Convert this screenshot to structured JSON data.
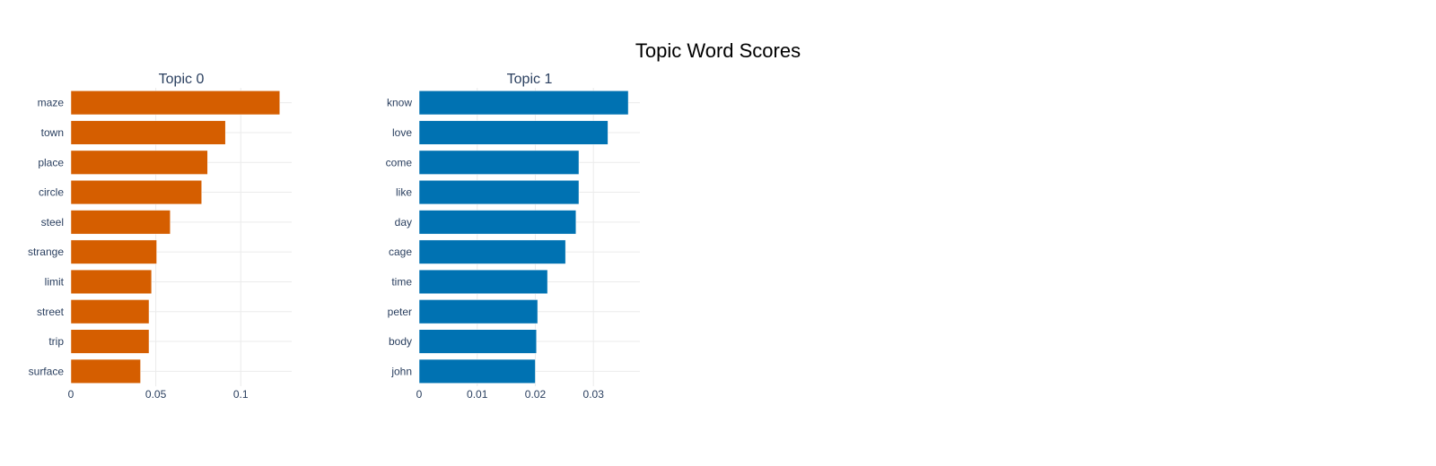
{
  "title": "Topic Word Scores",
  "chart_data": [
    {
      "type": "bar",
      "orientation": "horizontal",
      "title": "Topic 0",
      "color": "#d55e00",
      "categories": [
        "maze",
        "town",
        "place",
        "circle",
        "steel",
        "strange",
        "limit",
        "street",
        "trip",
        "surface"
      ],
      "values": [
        0.123,
        0.091,
        0.0805,
        0.077,
        0.0585,
        0.0505,
        0.0475,
        0.046,
        0.046,
        0.041
      ],
      "xlim": [
        0,
        0.13
      ],
      "xticks": [
        0,
        0.05,
        0.1
      ],
      "xtick_labels": [
        "0",
        "0.05",
        "0.1"
      ],
      "grid": true
    },
    {
      "type": "bar",
      "orientation": "horizontal",
      "title": "Topic 1",
      "color": "#0072b2",
      "categories": [
        "know",
        "love",
        "come",
        "like",
        "day",
        "cage",
        "time",
        "peter",
        "body",
        "john"
      ],
      "values": [
        0.036,
        0.0325,
        0.0275,
        0.0275,
        0.027,
        0.0252,
        0.0221,
        0.0204,
        0.0202,
        0.02
      ],
      "xlim": [
        0,
        0.038
      ],
      "xticks": [
        0,
        0.01,
        0.02,
        0.03
      ],
      "xtick_labels": [
        "0",
        "0.01",
        "0.02",
        "0.03"
      ],
      "grid": true
    }
  ]
}
